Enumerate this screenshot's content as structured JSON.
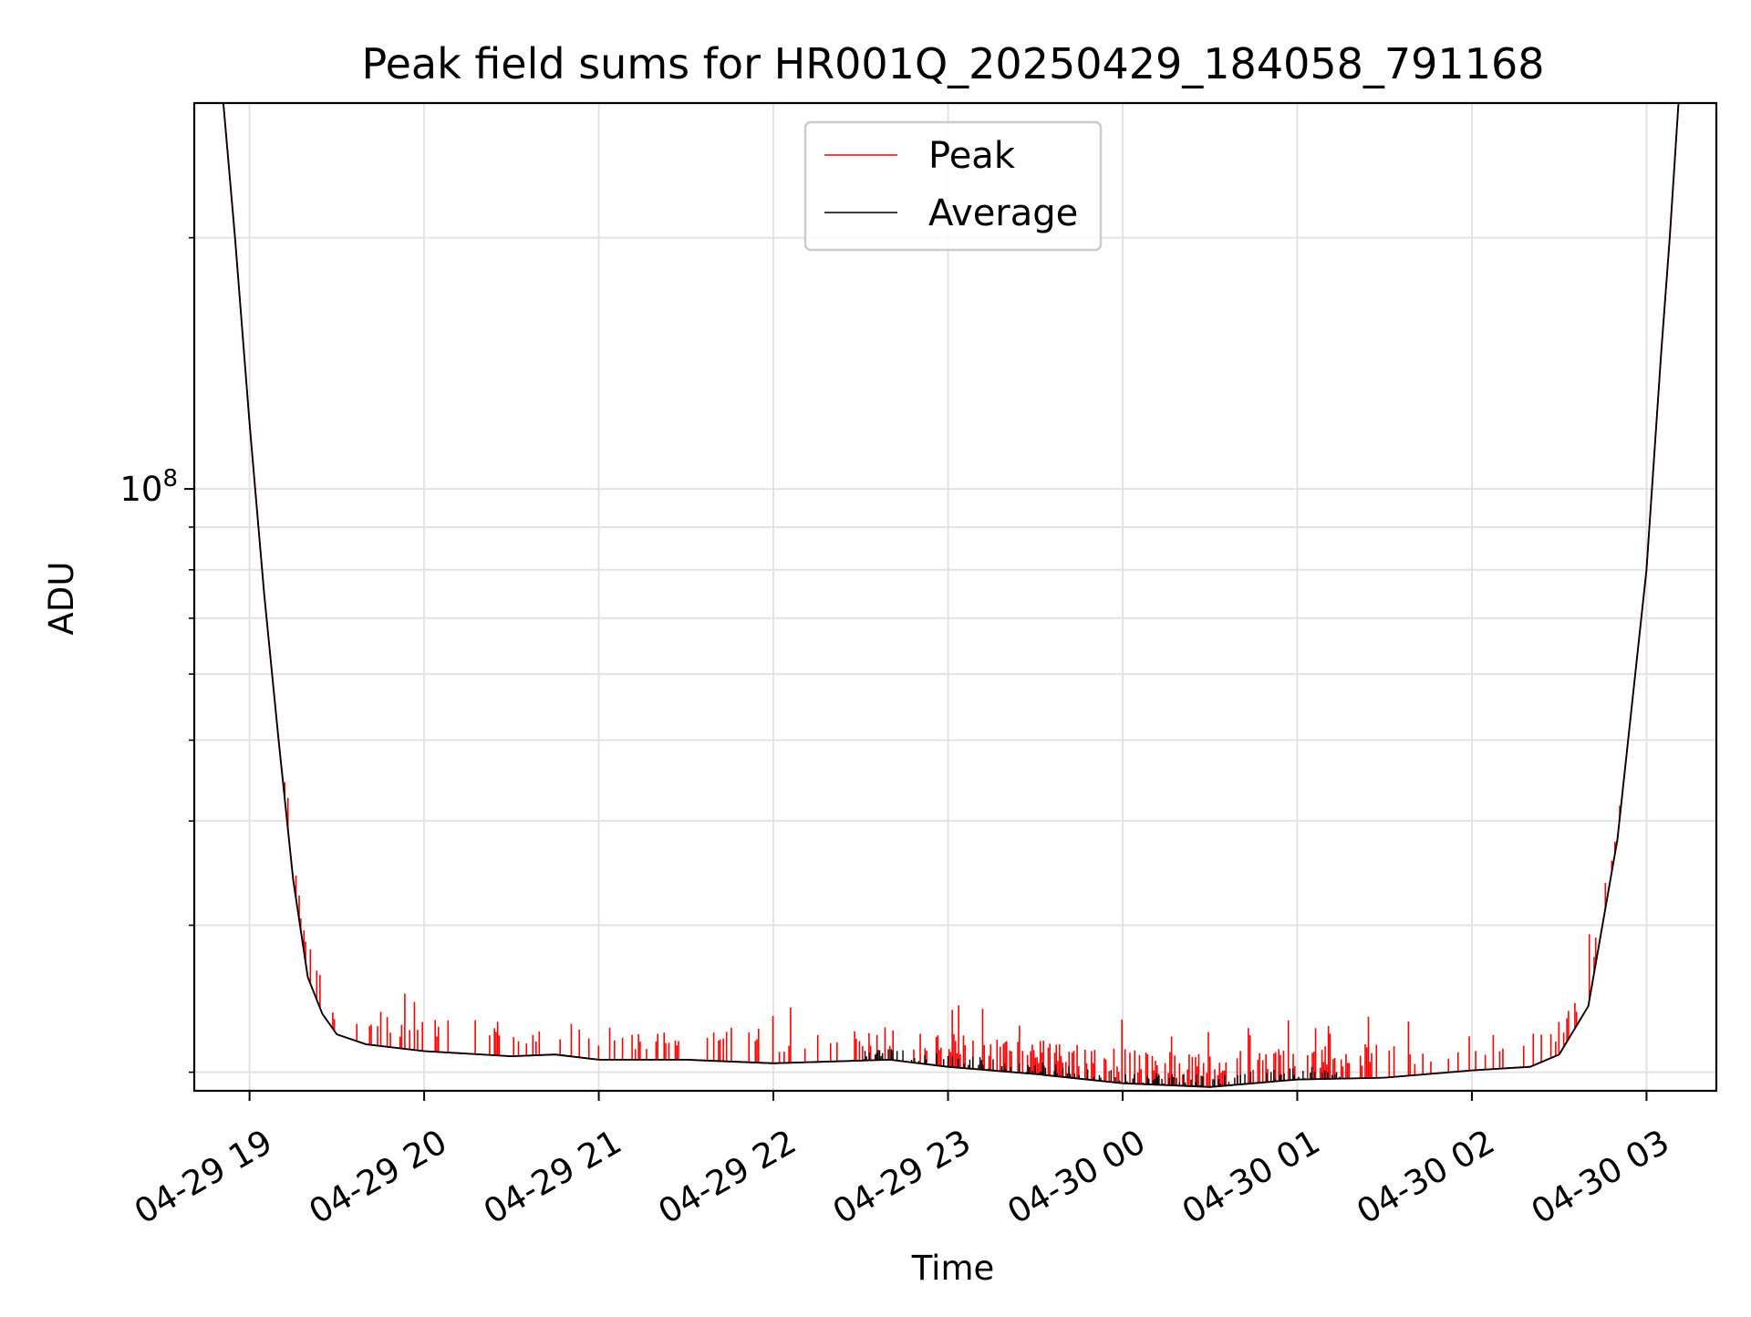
{
  "chart_data": {
    "type": "line",
    "title": "Peak field sums for HR001Q_20250429_184058_791168",
    "xlabel": "Time",
    "ylabel": "ADU",
    "y_scale": "log",
    "ylim": [
      19000000,
      290000000
    ],
    "xlim": [
      "2025-04-29 18:41",
      "2025-04-30 03:24"
    ],
    "x_ticks": [
      {
        "at": "2025-04-29 19:00",
        "label": "04-29 19"
      },
      {
        "at": "2025-04-29 20:00",
        "label": "04-29 20"
      },
      {
        "at": "2025-04-29 21:00",
        "label": "04-29 21"
      },
      {
        "at": "2025-04-29 22:00",
        "label": "04-29 22"
      },
      {
        "at": "2025-04-29 23:00",
        "label": "04-29 23"
      },
      {
        "at": "2025-04-30 00:00",
        "label": "04-30 00"
      },
      {
        "at": "2025-04-30 01:00",
        "label": "04-30 01"
      },
      {
        "at": "2025-04-30 02:00",
        "label": "04-30 02"
      },
      {
        "at": "2025-04-30 03:00",
        "label": "04-30 03"
      }
    ],
    "y_major_tick": {
      "value": 100000000,
      "label_base": "10",
      "label_exp": "8"
    },
    "y_minor_ticks": [
      20000000,
      30000000,
      40000000,
      50000000,
      60000000,
      70000000,
      80000000,
      90000000,
      200000000
    ],
    "grid": true,
    "legend_position": "top-center",
    "x_tick_rotation_deg": 30,
    "series": [
      {
        "name": "Peak",
        "color": "#ff0000",
        "style": "baseline with frequent upward spikes",
        "points": [
          [
            "2025-04-29 18:51",
            290000000
          ],
          [
            "2025-04-29 18:55",
            200000000
          ],
          [
            "2025-04-29 19:00",
            120000000
          ],
          [
            "2025-04-29 19:05",
            75000000
          ],
          [
            "2025-04-29 19:10",
            50000000
          ],
          [
            "2025-04-29 19:15",
            34000000
          ],
          [
            "2025-04-29 19:20",
            26000000
          ],
          [
            "2025-04-29 19:25",
            23500000
          ],
          [
            "2025-04-29 19:30",
            22200000
          ],
          [
            "2025-04-29 19:40",
            21600000
          ],
          [
            "2025-04-29 20:00",
            21200000
          ],
          [
            "2025-04-29 20:30",
            20900000
          ],
          [
            "2025-04-29 20:45",
            21000000
          ],
          [
            "2025-04-29 21:00",
            20700000
          ],
          [
            "2025-04-29 21:30",
            20700000
          ],
          [
            "2025-04-29 22:00",
            20500000
          ],
          [
            "2025-04-29 22:40",
            20700000
          ],
          [
            "2025-04-29 23:00",
            20300000
          ],
          [
            "2025-04-29 23:30",
            19900000
          ],
          [
            "2025-04-30 00:00",
            19400000
          ],
          [
            "2025-04-30 00:30",
            19200000
          ],
          [
            "2025-04-30 01:00",
            19600000
          ],
          [
            "2025-04-30 01:30",
            19700000
          ],
          [
            "2025-04-30 02:00",
            20100000
          ],
          [
            "2025-04-30 02:20",
            20300000
          ],
          [
            "2025-04-30 02:30",
            21000000
          ],
          [
            "2025-04-30 02:40",
            24000000
          ],
          [
            "2025-04-30 02:50",
            38000000
          ],
          [
            "2025-04-30 03:00",
            80000000
          ],
          [
            "2025-04-30 03:05",
            145000000
          ],
          [
            "2025-04-30 03:08",
            200000000
          ],
          [
            "2025-04-30 03:11",
            290000000
          ]
        ]
      },
      {
        "name": "Average",
        "color": "#000000",
        "style": "smooth curve with small dips",
        "points": [
          [
            "2025-04-29 18:51",
            290000000
          ],
          [
            "2025-04-29 18:55",
            200000000
          ],
          [
            "2025-04-29 19:00",
            120000000
          ],
          [
            "2025-04-29 19:05",
            75000000
          ],
          [
            "2025-04-29 19:10",
            50000000
          ],
          [
            "2025-04-29 19:15",
            34000000
          ],
          [
            "2025-04-29 19:20",
            26000000
          ],
          [
            "2025-04-29 19:25",
            23500000
          ],
          [
            "2025-04-29 19:30",
            22200000
          ],
          [
            "2025-04-29 19:40",
            21600000
          ],
          [
            "2025-04-29 20:00",
            21200000
          ],
          [
            "2025-04-29 20:30",
            20900000
          ],
          [
            "2025-04-29 20:45",
            21000000
          ],
          [
            "2025-04-29 21:00",
            20700000
          ],
          [
            "2025-04-29 21:30",
            20700000
          ],
          [
            "2025-04-29 22:00",
            20500000
          ],
          [
            "2025-04-29 22:40",
            20700000
          ],
          [
            "2025-04-29 23:00",
            20300000
          ],
          [
            "2025-04-29 23:30",
            19900000
          ],
          [
            "2025-04-30 00:00",
            19400000
          ],
          [
            "2025-04-30 00:30",
            19200000
          ],
          [
            "2025-04-30 01:00",
            19600000
          ],
          [
            "2025-04-30 01:30",
            19700000
          ],
          [
            "2025-04-30 02:00",
            20100000
          ],
          [
            "2025-04-30 02:20",
            20300000
          ],
          [
            "2025-04-30 02:30",
            21000000
          ],
          [
            "2025-04-30 02:40",
            24000000
          ],
          [
            "2025-04-30 02:50",
            38000000
          ],
          [
            "2025-04-30 03:00",
            80000000
          ],
          [
            "2025-04-30 03:05",
            145000000
          ],
          [
            "2025-04-30 03:08",
            200000000
          ],
          [
            "2025-04-30 03:11",
            290000000
          ]
        ]
      }
    ]
  }
}
